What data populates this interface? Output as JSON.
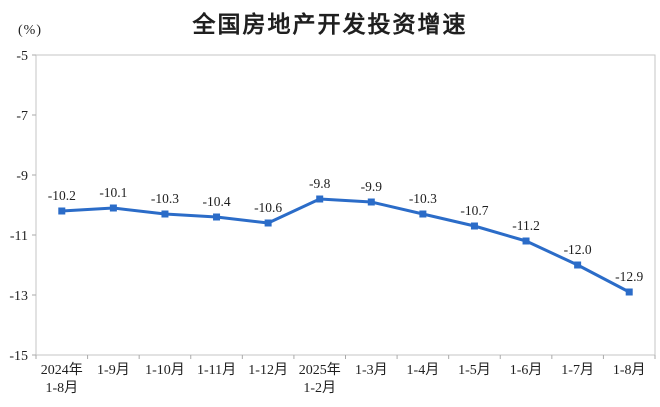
{
  "chart_data": {
    "type": "line",
    "title": "全国房地产开发投资增速",
    "unit_label": "(%)",
    "xlabel": "",
    "ylabel": "(%)",
    "categories": [
      [
        "2024年",
        "1-8月"
      ],
      [
        "1-9月"
      ],
      [
        "1-10月"
      ],
      [
        "1-11月"
      ],
      [
        "1-12月"
      ],
      [
        "2025年",
        "1-2月"
      ],
      [
        "1-3月"
      ],
      [
        "1-4月"
      ],
      [
        "1-5月"
      ],
      [
        "1-6月"
      ],
      [
        "1-7月"
      ],
      [
        "1-8月"
      ]
    ],
    "values": [
      -10.2,
      -10.1,
      -10.3,
      -10.4,
      -10.6,
      -9.8,
      -9.9,
      -10.3,
      -10.7,
      -11.2,
      -12.0,
      -12.9
    ],
    "data_labels": [
      "-10.2",
      "-10.1",
      "-10.3",
      "-10.4",
      "-10.6",
      "-9.8",
      "-9.9",
      "-10.3",
      "-10.7",
      "-11.2",
      "-12.0",
      "-12.9"
    ],
    "ylim": [
      -15,
      -5
    ],
    "yticks": [
      -5,
      -7,
      -9,
      -11,
      -13,
      -15
    ],
    "grid": false,
    "legend_position": "none",
    "marker": "square"
  },
  "colors": {
    "series": "#2b6cc8",
    "text": "#1f1f1f",
    "axis": "#c6c6c6",
    "tick": "#aaaaaa",
    "background": "#ffffff"
  }
}
